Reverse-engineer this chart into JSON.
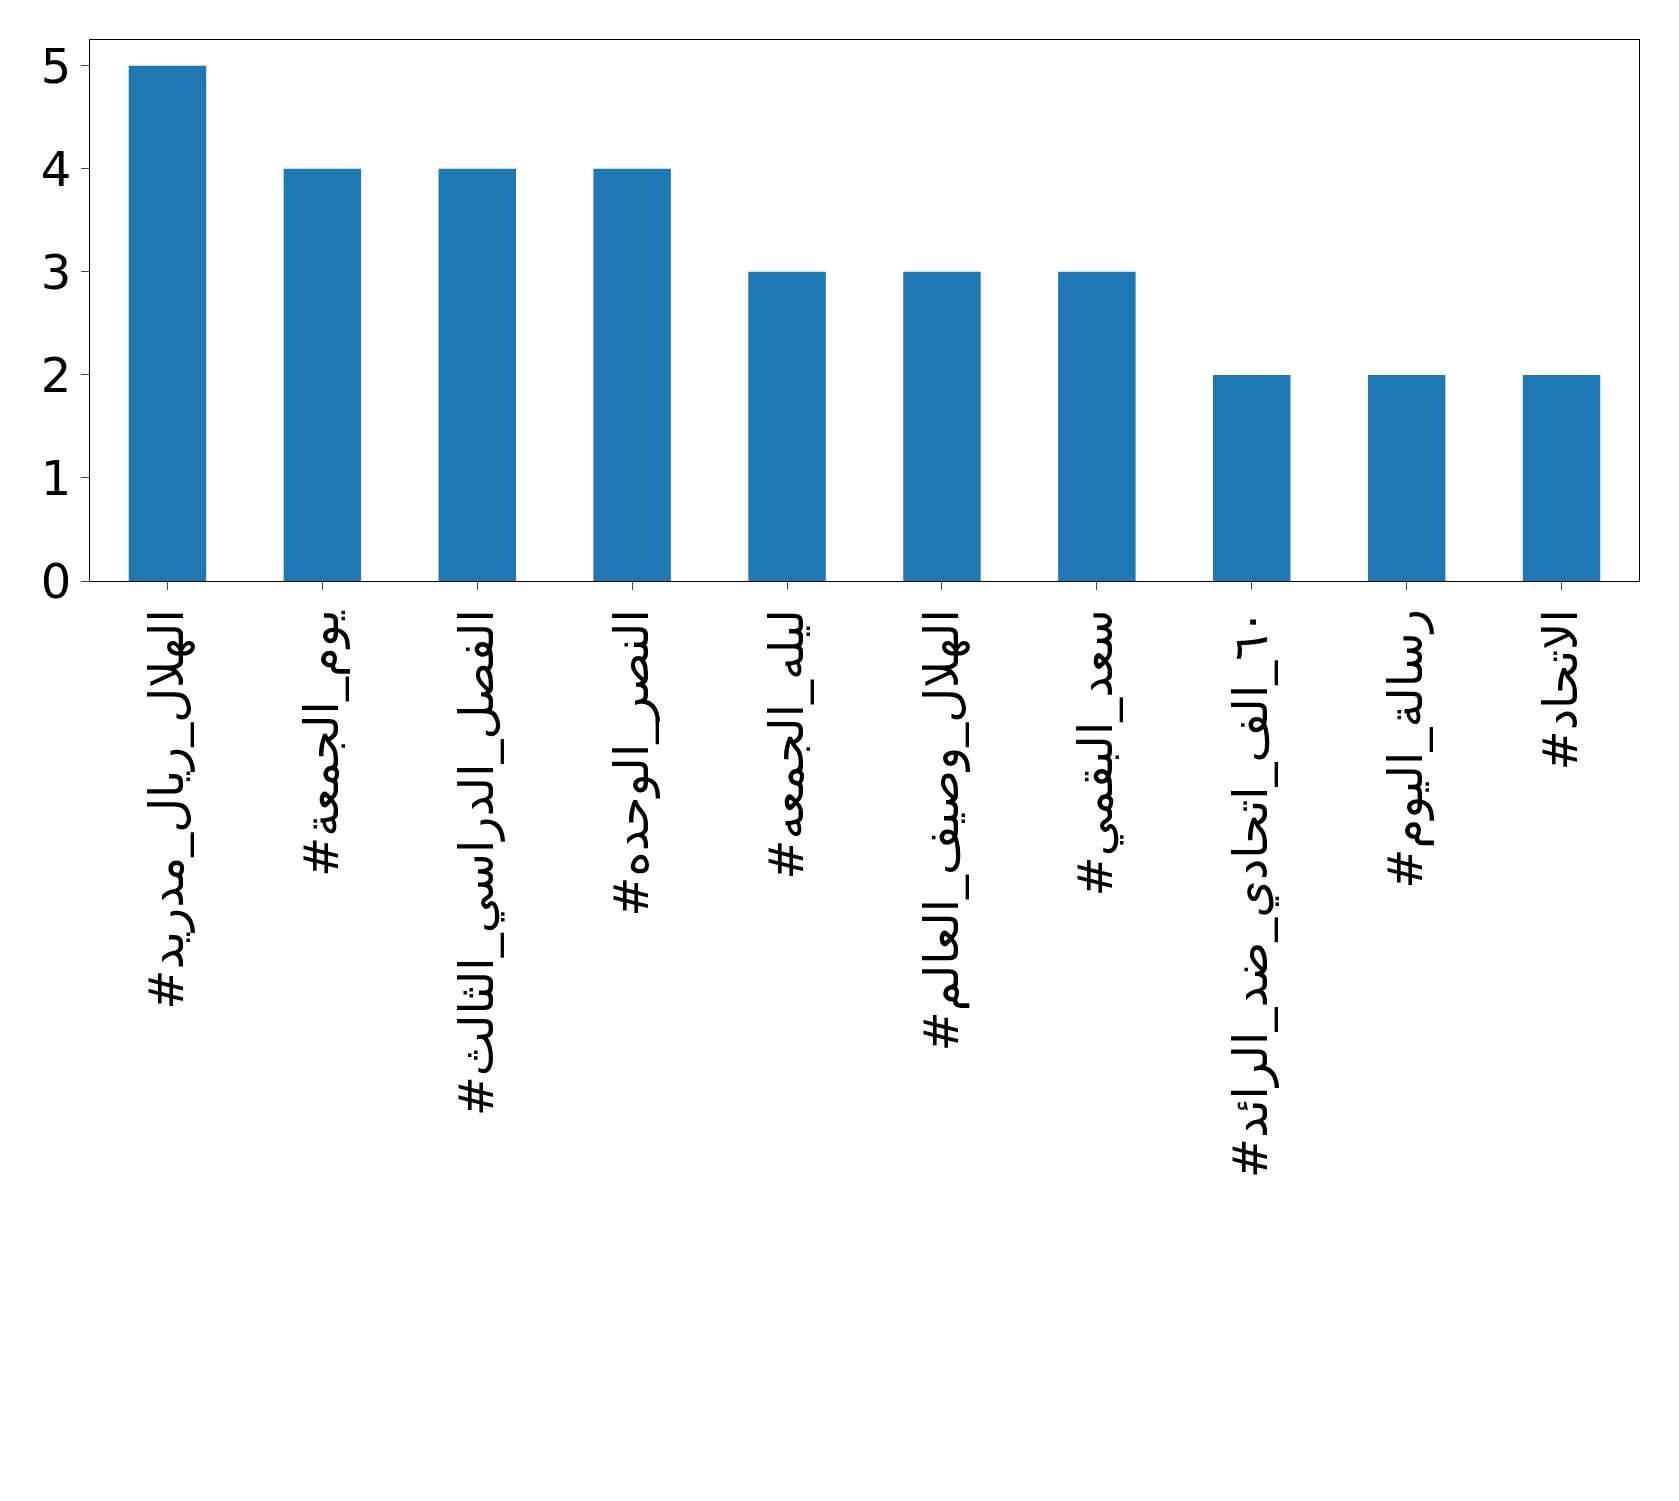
{
  "chart_data": {
    "type": "bar",
    "categories": [
      "#الهلال_ريال_مدريد",
      "#يوم_الجمعة",
      "#الفصل_الدراسي_الثالث",
      "#النصر_الوحده",
      "#ليله_الجمعه",
      "#الهلال_وصيف_العالم",
      "#سعد_البقمي",
      "#٦٠_الف_اتحادي_ضد_الرائد",
      "#رسالة_اليوم",
      "#الاتحاد"
    ],
    "values": [
      5,
      4,
      4,
      4,
      3,
      3,
      3,
      2,
      2,
      2
    ],
    "color": "#1f77b4",
    "ylim": [
      0,
      5.25
    ],
    "yticks": [
      0,
      1,
      2,
      3,
      4,
      5
    ]
  }
}
